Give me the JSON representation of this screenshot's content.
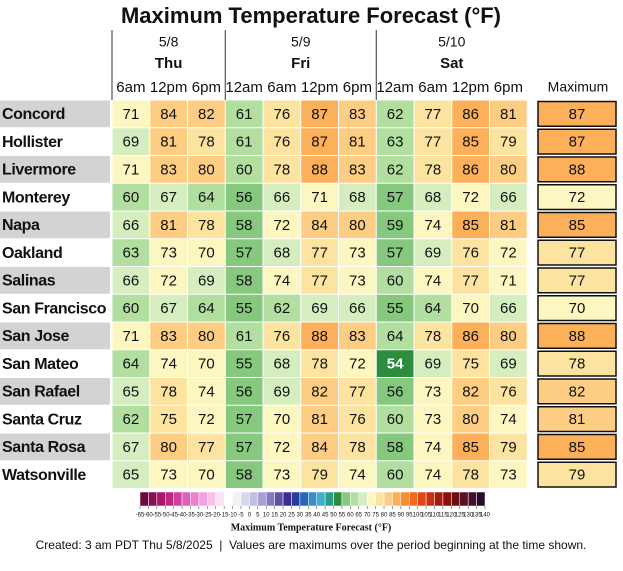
{
  "title": "Maximum Temperature Forecast (°F)",
  "columns": [
    {
      "date": "5/8",
      "day": "Thu",
      "times": [
        "6am",
        "12pm",
        "6pm"
      ]
    },
    {
      "date": "5/9",
      "day": "Fri",
      "times": [
        "12am",
        "6am",
        "12pm",
        "6pm"
      ]
    },
    {
      "date": "5/10",
      "day": "Sat",
      "times": [
        "12am",
        "6am",
        "12pm",
        "6pm"
      ]
    }
  ],
  "max_header": "Maximum",
  "rows": [
    {
      "name": "Concord",
      "values": [
        71,
        84,
        82,
        61,
        76,
        87,
        83,
        62,
        77,
        86,
        81
      ],
      "max": 87
    },
    {
      "name": "Hollister",
      "values": [
        69,
        81,
        78,
        61,
        76,
        87,
        81,
        63,
        77,
        85,
        79
      ],
      "max": 87
    },
    {
      "name": "Livermore",
      "values": [
        71,
        83,
        80,
        60,
        78,
        88,
        83,
        62,
        78,
        86,
        80
      ],
      "max": 88
    },
    {
      "name": "Monterey",
      "values": [
        60,
        67,
        64,
        56,
        66,
        71,
        68,
        57,
        68,
        72,
        66
      ],
      "max": 72
    },
    {
      "name": "Napa",
      "values": [
        66,
        81,
        78,
        58,
        72,
        84,
        80,
        59,
        74,
        85,
        81
      ],
      "max": 85
    },
    {
      "name": "Oakland",
      "values": [
        63,
        73,
        70,
        57,
        68,
        77,
        73,
        57,
        69,
        76,
        72
      ],
      "max": 77
    },
    {
      "name": "Salinas",
      "values": [
        66,
        72,
        69,
        58,
        74,
        77,
        73,
        60,
        74,
        77,
        71
      ],
      "max": 77
    },
    {
      "name": "San Francisco",
      "values": [
        60,
        67,
        64,
        55,
        62,
        69,
        66,
        55,
        64,
        70,
        66
      ],
      "max": 70
    },
    {
      "name": "San Jose",
      "values": [
        71,
        83,
        80,
        61,
        76,
        88,
        83,
        64,
        78,
        86,
        80
      ],
      "max": 88
    },
    {
      "name": "San Mateo",
      "values": [
        64,
        74,
        70,
        55,
        68,
        78,
        72,
        54,
        69,
        75,
        69
      ],
      "max": 78
    },
    {
      "name": "San Rafael",
      "values": [
        65,
        78,
        74,
        56,
        69,
        82,
        77,
        56,
        73,
        82,
        76
      ],
      "max": 82
    },
    {
      "name": "Santa Cruz",
      "values": [
        62,
        75,
        72,
        57,
        70,
        81,
        76,
        60,
        73,
        80,
        74
      ],
      "max": 81
    },
    {
      "name": "Santa Rosa",
      "values": [
        67,
        80,
        77,
        57,
        72,
        84,
        78,
        58,
        74,
        85,
        79
      ],
      "max": 85
    },
    {
      "name": "Watsonville",
      "values": [
        65,
        73,
        70,
        58,
        73,
        79,
        74,
        60,
        74,
        78,
        73
      ],
      "max": 79
    }
  ],
  "colorbar": {
    "label": "Maximum Temperature Forecast (°F)",
    "ticks": [
      -65,
      -60,
      -55,
      -50,
      -45,
      -40,
      -35,
      -30,
      -25,
      -20,
      -15,
      -10,
      -5,
      0,
      5,
      10,
      15,
      20,
      25,
      30,
      35,
      40,
      45,
      50,
      55,
      60,
      65,
      70,
      75,
      80,
      85,
      90,
      95,
      100,
      105,
      110,
      115,
      120,
      125,
      130,
      135,
      140
    ],
    "colors": [
      "#6a0a3a",
      "#8a1050",
      "#a8186a",
      "#c02880",
      "#d040a0",
      "#e060b8",
      "#ec80cc",
      "#f4a0dc",
      "#fac0ea",
      "#fde0f4",
      "#ffffff",
      "#f0f0f8",
      "#d8d8ec",
      "#c0c0e0",
      "#a8a0d0",
      "#8878c0",
      "#6050a8",
      "#3c2c90",
      "#283c9c",
      "#2e64b4",
      "#3c8cc8",
      "#40b0c8",
      "#2c9c8c",
      "#2e8c3e",
      "#86c97e",
      "#b2dea0",
      "#d6edc0",
      "#fcf6c0",
      "#fde3a0",
      "#fdcd84",
      "#fdb05a",
      "#f88c30",
      "#f06a20",
      "#e04818",
      "#c83010",
      "#a81c10",
      "#88100c",
      "#6c0c10",
      "#581020",
      "#401030",
      "#2a0a2a"
    ]
  },
  "footer": "Created: 3 am PDT Thu 5/8/2025  |  Values are maximums over the period beginning at the time shown."
}
